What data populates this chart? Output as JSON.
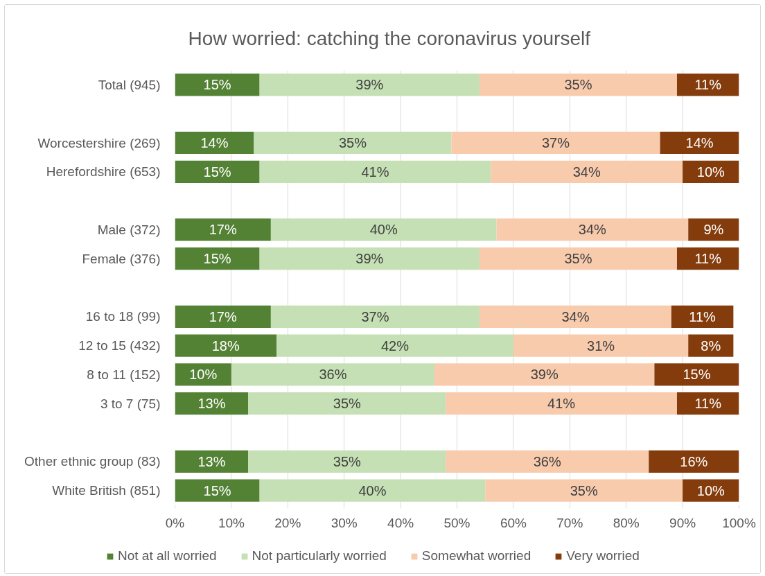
{
  "chart_data": {
    "type": "bar",
    "orientation": "horizontal",
    "stacked": true,
    "title": "How worried: catching the coronavirus yourself",
    "categories": [
      "Total (945)",
      null,
      "Worcestershire (269)",
      "Herefordshire (653)",
      null,
      "Male (372)",
      "Female (376)",
      null,
      "16 to 18 (99)",
      "12 to 15 (432)",
      "8 to 11 (152)",
      "3 to 7 (75)",
      null,
      "Other ethnic group (83)",
      "White British (851)"
    ],
    "series": [
      {
        "name": "Not at all worried",
        "color": "#548235",
        "values": [
          15,
          null,
          14,
          15,
          null,
          17,
          15,
          null,
          17,
          18,
          10,
          13,
          null,
          13,
          15
        ],
        "value_labels": [
          "15%",
          null,
          "14%",
          "15%",
          null,
          "17%",
          "15%",
          null,
          "17%",
          "18%",
          "10%",
          "13%",
          null,
          "13%",
          "15%"
        ]
      },
      {
        "name": "Not particularly worried",
        "color": "#c5e0b4",
        "values": [
          39,
          null,
          35,
          41,
          null,
          40,
          39,
          null,
          37,
          42,
          36,
          35,
          null,
          35,
          40
        ],
        "value_labels": [
          "39%",
          null,
          "35%",
          "41%",
          null,
          "40%",
          "39%",
          null,
          "37%",
          "42%",
          "36%",
          "35%",
          null,
          "35%",
          "40%"
        ]
      },
      {
        "name": "Somewhat worried",
        "color": "#f8cbad",
        "values": [
          35,
          null,
          37,
          34,
          null,
          34,
          35,
          null,
          34,
          31,
          39,
          41,
          null,
          36,
          35
        ],
        "value_labels": [
          "35%",
          null,
          "37%",
          "34%",
          null,
          "34%",
          "35%",
          null,
          "34%",
          "31%",
          "39%",
          "41%",
          null,
          "36%",
          "35%"
        ]
      },
      {
        "name": "Very worried",
        "color": "#843c0c",
        "values": [
          11,
          null,
          14,
          10,
          null,
          9,
          11,
          null,
          11,
          8,
          15,
          11,
          null,
          16,
          10
        ],
        "value_labels": [
          "11%",
          null,
          "14%",
          "10%",
          null,
          "9%",
          "11%",
          null,
          "11%",
          "8%",
          "15%",
          "11%",
          null,
          "16%",
          "10%"
        ]
      }
    ],
    "xlim": [
      0,
      100
    ],
    "xticks": [
      {
        "value": 0,
        "label": "0%"
      },
      {
        "value": 10,
        "label": "10%"
      },
      {
        "value": 20,
        "label": "20%"
      },
      {
        "value": 30,
        "label": "30%"
      },
      {
        "value": 40,
        "label": "40%"
      },
      {
        "value": 50,
        "label": "50%"
      },
      {
        "value": 60,
        "label": "60%"
      },
      {
        "value": 70,
        "label": "70%"
      },
      {
        "value": 80,
        "label": "80%"
      },
      {
        "value": 90,
        "label": "90%"
      },
      {
        "value": 100,
        "label": "100%"
      }
    ],
    "grid": "x",
    "legend": "bottom"
  }
}
